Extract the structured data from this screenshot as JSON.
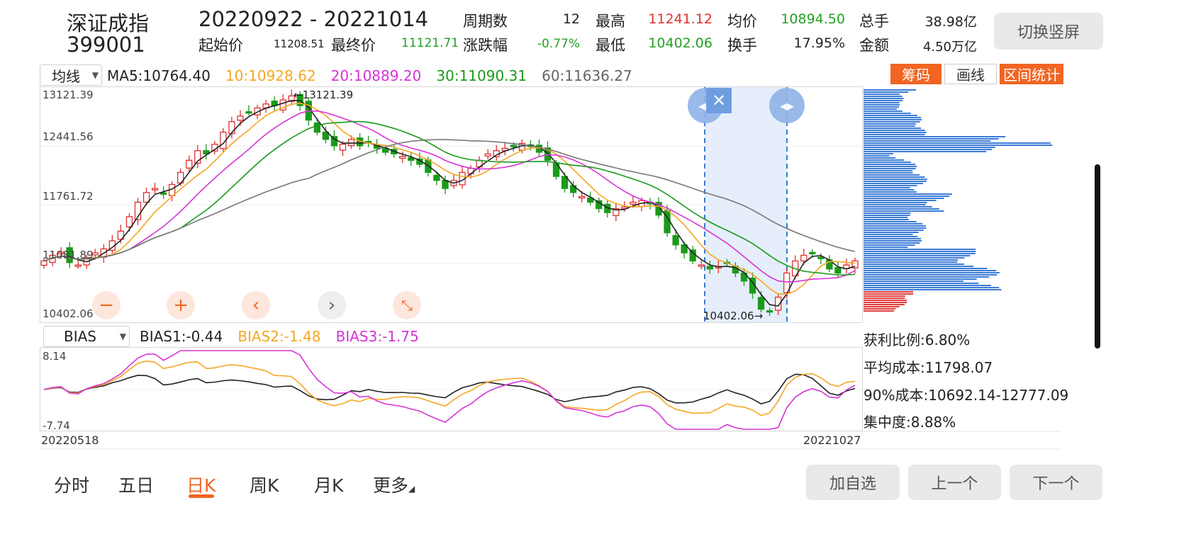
{
  "header": {
    "name": "深证成指",
    "code": "399001",
    "range": "20220922  - 20221014",
    "rows": [
      [
        {
          "label": "周期数",
          "value": "12",
          "color": "#222222"
        },
        {
          "label": "最高",
          "value": "11241.12",
          "color": "#e03030"
        },
        {
          "label": "均价",
          "value": "10894.50",
          "color": "#22a022"
        },
        {
          "label": "总手",
          "value": "38.98亿",
          "color": "#222222"
        }
      ],
      [
        {
          "label": "涨跌幅",
          "value": "-0.77%",
          "color": "#22a022"
        },
        {
          "label": "最低",
          "value": "10402.06",
          "color": "#22a022"
        },
        {
          "label": "换手",
          "value": "17.95%",
          "color": "#222222"
        },
        {
          "label": "金额",
          "value": "4.50万亿",
          "color": "#222222"
        }
      ]
    ],
    "start_label": "起始价",
    "start_value": "11208.51",
    "end_label": "最终价",
    "end_value": "11121.71",
    "switch_button": "切换竖屏"
  },
  "ma": {
    "selector": "均线",
    "items": [
      {
        "text": "MA5:10764.40",
        "color": "#222222"
      },
      {
        "text": "10:10928.62",
        "color": "#f5a623"
      },
      {
        "text": "20:10889.20",
        "color": "#d633d6"
      },
      {
        "text": "30:11090.31",
        "color": "#1a9a1a"
      },
      {
        "text": "60:11636.27",
        "color": "#666666"
      }
    ]
  },
  "tools": {
    "chips": "筹码",
    "draw": "画线",
    "range_stats": "区间统计"
  },
  "price_axis": [
    "13121.39",
    "12441.56",
    "11761.72",
    "11081.89",
    "10402.06"
  ],
  "annotations": {
    "high": "←13121.39",
    "low": "10402.06→"
  },
  "bias": {
    "selector": "BIAS",
    "items": [
      {
        "text": "BIAS1:-0.44",
        "color": "#222222"
      },
      {
        "text": "BIAS2:-1.48",
        "color": "#f5a623"
      },
      {
        "text": "BIAS3:-1.75",
        "color": "#d633d6"
      }
    ],
    "max": "8.14",
    "min": "-7.74"
  },
  "dates": {
    "start": "20220518",
    "end": "20221027"
  },
  "chips_stats": {
    "profit": "获利比例:6.80%",
    "avg_cost": "平均成本:11798.07",
    "cost90": "90%成本:10692.14-12777.09",
    "concentration": "集中度:8.88%"
  },
  "tabs": [
    {
      "label": "分时",
      "active": false
    },
    {
      "label": "五日",
      "active": false
    },
    {
      "label": "日K",
      "active": true
    },
    {
      "label": "周K",
      "active": false
    },
    {
      "label": "月K",
      "active": false
    },
    {
      "label": "更多",
      "active": false
    }
  ],
  "actions": {
    "add": "加自选",
    "prev": "上一个",
    "next": "下一个"
  },
  "colors": {
    "up": "#e03030",
    "down": "#1a9a1a",
    "accent": "#f26522",
    "selection": "#dce8f8",
    "chip_blue": "#3a7bd5",
    "chip_red": "#e23b3b"
  }
}
